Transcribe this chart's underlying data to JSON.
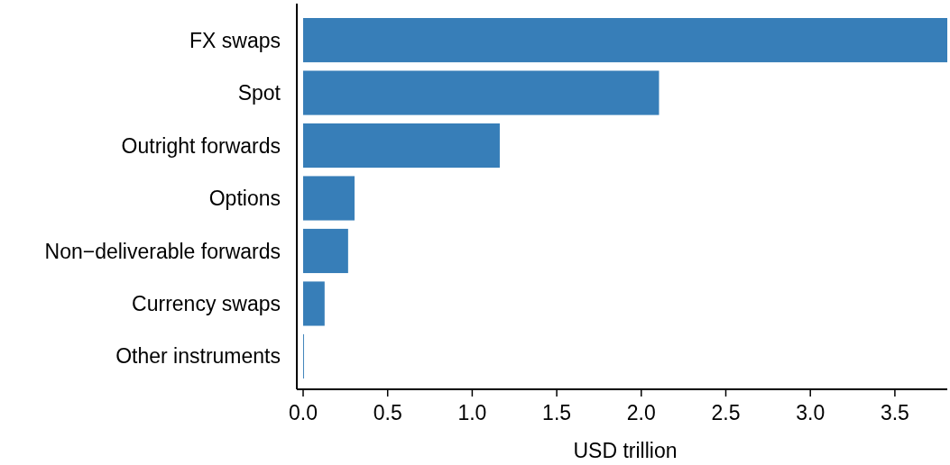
{
  "chart_data": {
    "type": "bar",
    "orientation": "horizontal",
    "xlabel": "USD trillion",
    "categories": [
      "FX swaps",
      "Spot",
      "Outright forwards",
      "Options",
      "Non−deliverable forwards",
      "Currency swaps",
      "Other instruments"
    ],
    "values": [
      3.81,
      2.105,
      1.163,
      0.304,
      0.266,
      0.127,
      0.005
    ],
    "color": "#377eb8",
    "xlim": [
      0,
      3.81
    ],
    "xticks": [
      {
        "value": 0,
        "label": "0.0"
      },
      {
        "value": 0.5,
        "label": "0.5"
      },
      {
        "value": 1,
        "label": "1.0"
      },
      {
        "value": 1.5,
        "label": "1.5"
      },
      {
        "value": 2,
        "label": "2.0"
      },
      {
        "value": 2.5,
        "label": "2.5"
      },
      {
        "value": 3,
        "label": "3.0"
      },
      {
        "value": 3.5,
        "label": "3.5"
      }
    ],
    "grid": false
  }
}
